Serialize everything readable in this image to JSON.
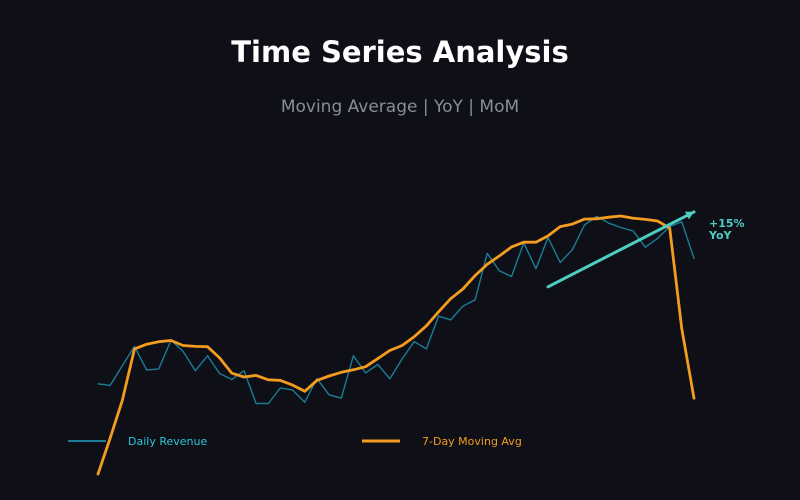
{
  "chart_data": {
    "type": "line",
    "title": "Time Series Analysis",
    "subtitle": "Moving Average | YoY | MoM",
    "xlabel": "",
    "ylabel": "",
    "x": [
      0,
      1,
      2,
      3,
      4,
      5,
      6,
      7,
      8,
      9,
      10,
      11,
      12,
      13,
      14,
      15,
      16,
      17,
      18,
      19,
      20,
      21,
      22,
      23,
      24,
      25,
      26,
      27,
      28,
      29,
      30,
      31,
      32,
      33,
      34,
      35,
      36,
      37,
      38,
      39,
      40,
      41,
      42,
      43,
      44,
      45,
      46,
      47,
      48,
      49
    ],
    "ylim": [
      0,
      100
    ],
    "grid": false,
    "series": [
      {
        "name": "Daily Revenue",
        "color": "#1a7d96",
        "values": [
          28.9,
          28.4,
          34.7,
          40.9,
          33.3,
          33.7,
          42.9,
          39.3,
          33.1,
          37.9,
          32.2,
          30.3,
          33.1,
          22.6,
          22.6,
          27.6,
          26.9,
          23.0,
          30.6,
          25.4,
          24.3,
          37.9,
          32.4,
          35.1,
          30.5,
          36.9,
          42.4,
          40.1,
          50.6,
          49.4,
          53.8,
          55.8,
          70.7,
          65.1,
          63.3,
          74.1,
          65.8,
          75.8,
          67.8,
          71.9,
          79.8,
          82.6,
          80.4,
          79.0,
          77.9,
          72.7,
          75.5,
          79.3,
          80.8,
          69.1
        ]
      },
      {
        "name": "7-Day Moving Avg",
        "color": "#f39c1f",
        "values": [
          0.0,
          11.5,
          23.6,
          40.1,
          41.6,
          42.4,
          42.8,
          41.2,
          40.9,
          40.8,
          37.2,
          32.3,
          31.1,
          31.6,
          30.2,
          30.0,
          28.5,
          26.5,
          30.0,
          31.4,
          32.6,
          33.4,
          34.4,
          37.0,
          39.6,
          41.2,
          44.0,
          47.5,
          52.0,
          56.2,
          59.3,
          63.6,
          67.2,
          69.9,
          72.8,
          74.3,
          74.3,
          76.3,
          79.3,
          80.1,
          81.7,
          81.8,
          82.3,
          82.7,
          82.0,
          81.6,
          81.1,
          78.8,
          46.5,
          24.3
        ]
      }
    ],
    "legend": {
      "position": "bottom",
      "entries": [
        "Daily Revenue",
        "7-Day Moving Avg"
      ]
    },
    "annotations": [
      {
        "text_line1": "+15%",
        "text_line2": "YoY",
        "color": "#4ecdc4",
        "arrow_from": [
          37,
          60
        ],
        "arrow_to": [
          49,
          84
        ]
      }
    ]
  }
}
